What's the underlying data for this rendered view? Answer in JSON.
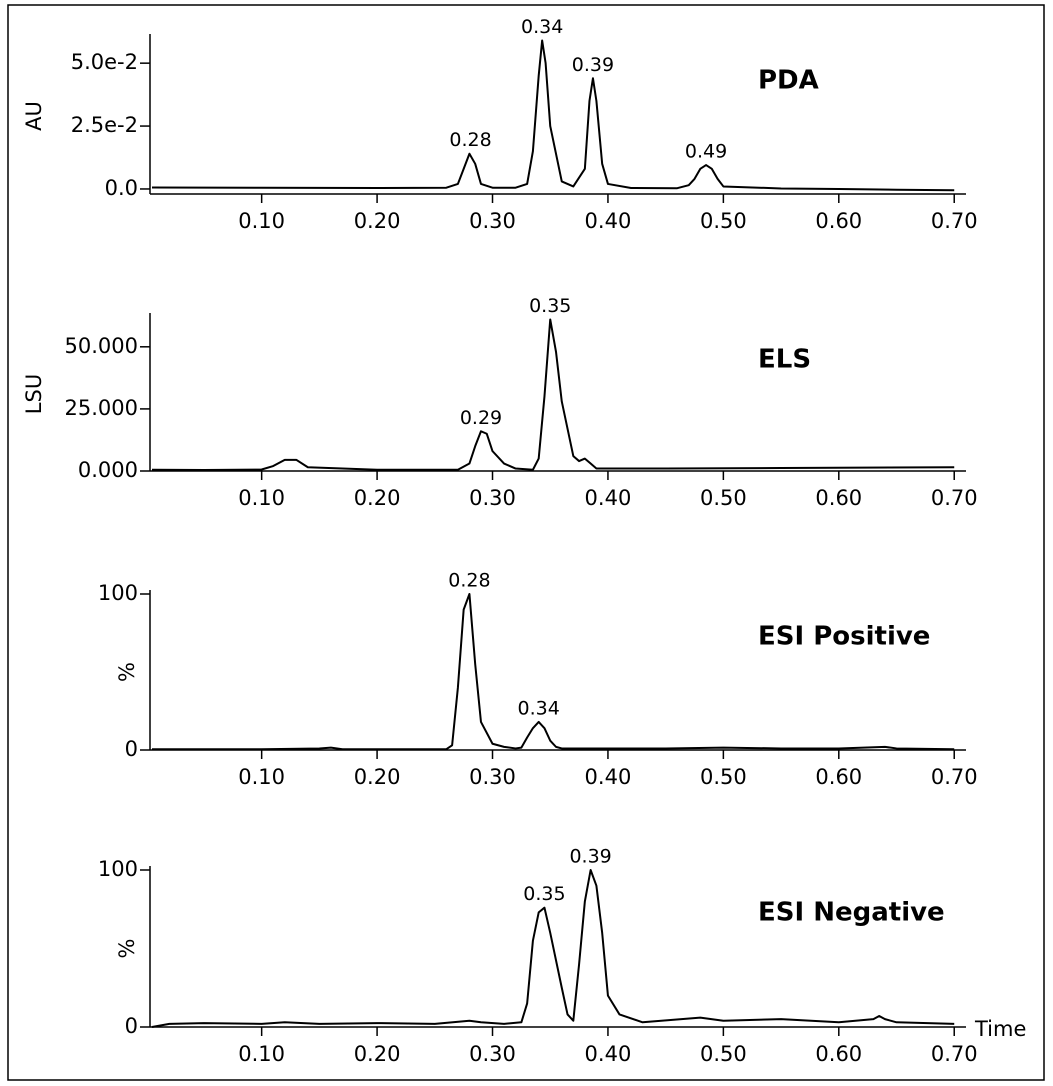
{
  "chart_data": [
    {
      "type": "line",
      "title": "PDA",
      "y_label": "AU",
      "color": "#000000",
      "x": [
        0.005,
        0.1,
        0.2,
        0.26,
        0.27,
        0.275,
        0.28,
        0.285,
        0.29,
        0.3,
        0.32,
        0.33,
        0.335,
        0.34,
        0.343,
        0.346,
        0.35,
        0.36,
        0.37,
        0.38,
        0.384,
        0.387,
        0.39,
        0.395,
        0.4,
        0.42,
        0.46,
        0.47,
        0.475,
        0.48,
        0.485,
        0.49,
        0.495,
        0.5,
        0.55,
        0.6,
        0.65,
        0.7
      ],
      "values": [
        0.0006,
        0.0005,
        0.0004,
        0.0005,
        0.002,
        0.008,
        0.014,
        0.01,
        0.002,
        0.0005,
        0.0005,
        0.002,
        0.015,
        0.045,
        0.059,
        0.05,
        0.025,
        0.003,
        0.001,
        0.008,
        0.035,
        0.044,
        0.035,
        0.01,
        0.002,
        0.0004,
        0.0003,
        0.0015,
        0.004,
        0.008,
        0.0095,
        0.008,
        0.004,
        0.001,
        0.0002,
        0.0,
        -0.0003,
        -0.0005
      ],
      "xlim": [
        0.005,
        0.705
      ],
      "ylim": [
        -0.002,
        0.06
      ],
      "xticks": [
        {
          "value": 0.1,
          "label": "0.10"
        },
        {
          "value": 0.2,
          "label": "0.20"
        },
        {
          "value": 0.3,
          "label": "0.30"
        },
        {
          "value": 0.4,
          "label": "0.40"
        },
        {
          "value": 0.5,
          "label": "0.50"
        },
        {
          "value": 0.6,
          "label": "0.60"
        },
        {
          "value": 0.7,
          "label": "0.70"
        }
      ],
      "yticks": [
        {
          "value": 0,
          "label": "0.0"
        },
        {
          "value": 0.025,
          "label": "2.5e-2"
        },
        {
          "value": 0.05,
          "label": "5.0e-2"
        }
      ],
      "annotations": [
        {
          "text": "0.28",
          "x": 0.281,
          "y": 0.014
        },
        {
          "text": "0.34",
          "x": 0.343,
          "y": 0.059
        },
        {
          "text": "0.39",
          "x": 0.387,
          "y": 0.044
        },
        {
          "text": "0.49",
          "x": 0.485,
          "y": 0.0095
        }
      ]
    },
    {
      "type": "line",
      "title": "ELS",
      "y_label": "LSU",
      "color": "#000000",
      "x": [
        0.005,
        0.05,
        0.1,
        0.11,
        0.12,
        0.13,
        0.14,
        0.2,
        0.27,
        0.28,
        0.285,
        0.29,
        0.295,
        0.3,
        0.31,
        0.32,
        0.335,
        0.34,
        0.345,
        0.35,
        0.355,
        0.36,
        0.37,
        0.375,
        0.38,
        0.385,
        0.39,
        0.45,
        0.55,
        0.7
      ],
      "values": [
        0.5,
        0.4,
        0.6,
        2,
        4.5,
        4.5,
        1.5,
        0.5,
        0.5,
        3,
        10,
        16,
        15,
        8,
        3,
        1,
        0.5,
        5,
        30,
        61,
        48,
        28,
        6,
        4,
        5,
        3,
        1,
        1,
        1.2,
        1.5
      ],
      "xlim": [
        0.005,
        0.705
      ],
      "ylim": [
        0,
        62
      ],
      "xticks": [
        {
          "value": 0.1,
          "label": "0.10"
        },
        {
          "value": 0.2,
          "label": "0.20"
        },
        {
          "value": 0.3,
          "label": "0.30"
        },
        {
          "value": 0.4,
          "label": "0.40"
        },
        {
          "value": 0.5,
          "label": "0.50"
        },
        {
          "value": 0.6,
          "label": "0.60"
        },
        {
          "value": 0.7,
          "label": "0.70"
        }
      ],
      "yticks": [
        {
          "value": 0,
          "label": "0.000"
        },
        {
          "value": 25,
          "label": "25.000"
        },
        {
          "value": 50,
          "label": "50.000"
        }
      ],
      "annotations": [
        {
          "text": "0.29",
          "x": 0.29,
          "y": 16
        },
        {
          "text": "0.35",
          "x": 0.35,
          "y": 61
        }
      ]
    },
    {
      "type": "line",
      "title": "ESI Positive",
      "y_label": "%",
      "color": "#000000",
      "x": [
        0.005,
        0.05,
        0.1,
        0.15,
        0.16,
        0.17,
        0.2,
        0.26,
        0.265,
        0.27,
        0.275,
        0.28,
        0.285,
        0.29,
        0.3,
        0.31,
        0.32,
        0.325,
        0.33,
        0.335,
        0.34,
        0.345,
        0.35,
        0.355,
        0.36,
        0.4,
        0.45,
        0.5,
        0.55,
        0.6,
        0.64,
        0.65,
        0.7
      ],
      "values": [
        0.5,
        0.5,
        0.5,
        1,
        1.5,
        0.5,
        0.5,
        0.5,
        3,
        40,
        90,
        100,
        55,
        18,
        4,
        2,
        1,
        1.5,
        8,
        14,
        18,
        14,
        6,
        2,
        1,
        1,
        1,
        1.5,
        1,
        1,
        2,
        1,
        0.5
      ],
      "xlim": [
        0.005,
        0.705
      ],
      "ylim": [
        0,
        100
      ],
      "xticks": [
        {
          "value": 0.1,
          "label": "0.10"
        },
        {
          "value": 0.2,
          "label": "0.20"
        },
        {
          "value": 0.3,
          "label": "0.30"
        },
        {
          "value": 0.4,
          "label": "0.40"
        },
        {
          "value": 0.5,
          "label": "0.50"
        },
        {
          "value": 0.6,
          "label": "0.60"
        },
        {
          "value": 0.7,
          "label": "0.70"
        }
      ],
      "yticks": [
        0,
        100
      ],
      "annotations": [
        {
          "text": "0.28",
          "x": 0.28,
          "y": 100
        },
        {
          "text": "0.34",
          "x": 0.34,
          "y": 18
        }
      ]
    },
    {
      "type": "line",
      "title": "ESI Negative",
      "y_label": "%",
      "x_label": "Time",
      "color": "#000000",
      "x": [
        0.005,
        0.02,
        0.05,
        0.1,
        0.12,
        0.15,
        0.2,
        0.25,
        0.28,
        0.29,
        0.31,
        0.325,
        0.33,
        0.335,
        0.34,
        0.345,
        0.35,
        0.36,
        0.365,
        0.37,
        0.375,
        0.38,
        0.385,
        0.39,
        0.395,
        0.4,
        0.41,
        0.43,
        0.48,
        0.5,
        0.55,
        0.6,
        0.63,
        0.635,
        0.64,
        0.65,
        0.7
      ],
      "values": [
        0,
        2,
        2.5,
        2,
        3,
        2,
        2.5,
        2,
        4,
        3,
        2,
        3,
        15,
        55,
        73,
        76,
        60,
        25,
        8,
        4,
        40,
        80,
        100,
        90,
        60,
        20,
        8,
        3,
        6,
        4,
        5,
        3,
        5,
        7,
        5,
        3,
        2
      ],
      "xlim": [
        0.005,
        0.705
      ],
      "ylim": [
        0,
        100
      ],
      "xticks": [
        {
          "value": 0.1,
          "label": "0.10"
        },
        {
          "value": 0.2,
          "label": "0.20"
        },
        {
          "value": 0.3,
          "label": "0.30"
        },
        {
          "value": 0.4,
          "label": "0.40"
        },
        {
          "value": 0.5,
          "label": "0.50"
        },
        {
          "value": 0.6,
          "label": "0.60"
        },
        {
          "value": 0.7,
          "label": "0.70"
        }
      ],
      "yticks": [
        0,
        100
      ],
      "annotations": [
        {
          "text": "0.35",
          "x": 0.345,
          "y": 76
        },
        {
          "text": "0.39",
          "x": 0.385,
          "y": 100
        }
      ]
    }
  ]
}
